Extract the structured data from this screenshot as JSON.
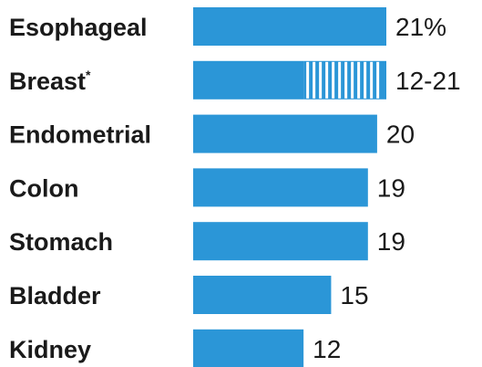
{
  "chart_data": {
    "type": "bar",
    "orientation": "horizontal",
    "categories": [
      "Esophageal",
      "Breast",
      "Endometrial",
      "Colon",
      "Stomach",
      "Bladder",
      "Kidney"
    ],
    "category_footnote_marks": [
      "",
      "*",
      "",
      "",
      "",
      "",
      ""
    ],
    "values": [
      21,
      12,
      20,
      19,
      19,
      15,
      12
    ],
    "range_max": [
      null,
      21,
      null,
      null,
      null,
      null,
      null
    ],
    "value_labels": [
      "21%",
      "12-21",
      "20",
      "19",
      "19",
      "15",
      "12"
    ],
    "xlim": [
      0,
      21
    ],
    "title": "",
    "xlabel": "",
    "ylabel": "",
    "grid": false,
    "legend": "none",
    "colors": {
      "bar": "#2b96d7",
      "range_stripe": "#ffffff",
      "text": "#1a1a1a"
    }
  }
}
